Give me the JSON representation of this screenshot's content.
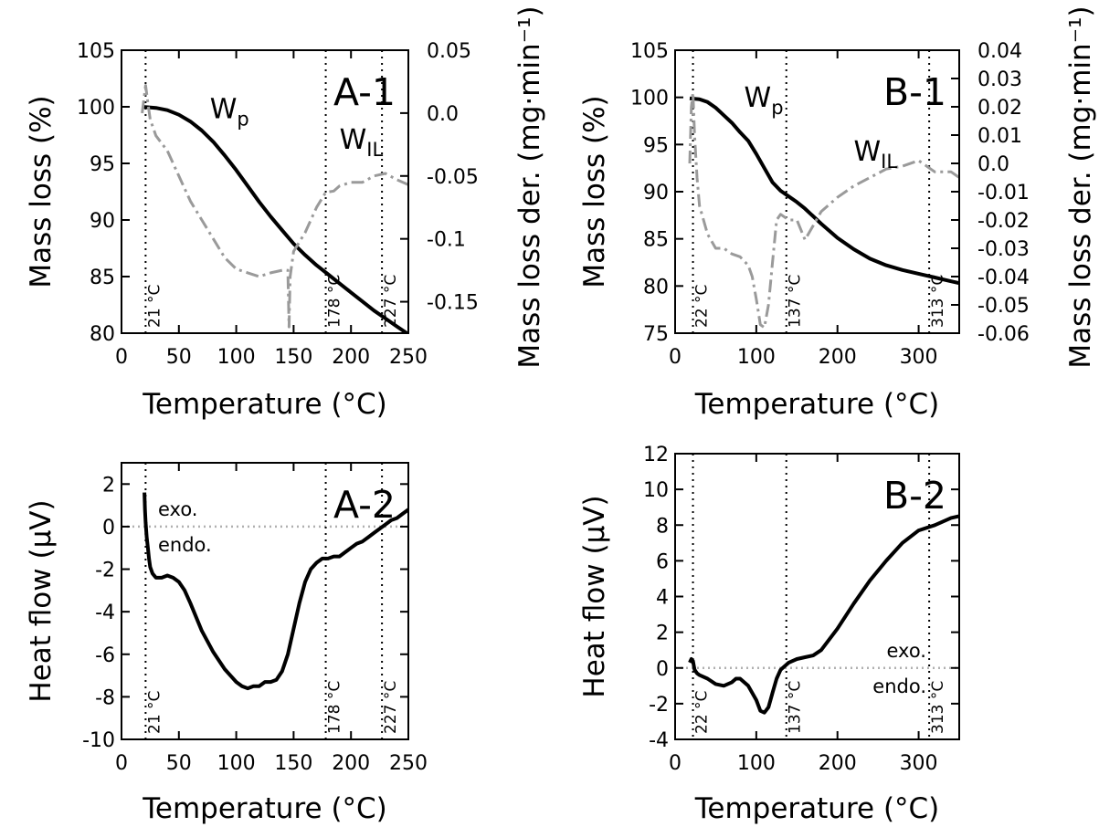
{
  "chart_data": [
    {
      "id": "A-1",
      "type": "line",
      "panel_label": "A-1",
      "xlabel": "Temperature (°C)",
      "ylabel": "Mass loss (%)",
      "y2label": "Mass loss der. (mg·min⁻¹)",
      "xlim": [
        0,
        250
      ],
      "ylim": [
        80,
        105
      ],
      "y2lim": [
        -0.175,
        0.05
      ],
      "xticks": [
        "0",
        "50",
        "100",
        "150",
        "200",
        "250"
      ],
      "yticks": [
        "80",
        "85",
        "90",
        "95",
        "100",
        "105"
      ],
      "y2ticks": [
        "-0.15",
        "-0.1",
        "-0.05",
        "0.0",
        "0.05"
      ],
      "vlines": [
        {
          "x": 21,
          "label": "21 °C"
        },
        {
          "x": 178,
          "label": "178 °C"
        },
        {
          "x": 227,
          "label": "227 °C"
        }
      ],
      "curve_labels": [
        {
          "text": "W",
          "sub": "p",
          "x": 77,
          "y": 99.0
        },
        {
          "text": "W",
          "sub": "IL",
          "x": 190,
          "y": 96.3
        }
      ],
      "series": [
        {
          "name": "mass loss",
          "axis": "y",
          "color": "#000000",
          "x": [
            18,
            30,
            40,
            50,
            60,
            70,
            80,
            90,
            100,
            110,
            120,
            130,
            140,
            150,
            160,
            170,
            180,
            190,
            200,
            210,
            220,
            230,
            240,
            250
          ],
          "y": [
            100.0,
            99.9,
            99.7,
            99.3,
            98.7,
            97.9,
            96.9,
            95.7,
            94.4,
            93.0,
            91.6,
            90.3,
            89.1,
            87.9,
            86.9,
            86.0,
            85.2,
            84.4,
            83.6,
            82.8,
            82.0,
            81.3,
            80.6,
            79.9
          ]
        },
        {
          "name": "derivative",
          "axis": "y2",
          "color": "#9a9a9a",
          "dash": "14 5 3 5",
          "x": [
            18,
            21,
            23,
            25,
            30,
            40,
            50,
            60,
            70,
            80,
            90,
            100,
            110,
            120,
            130,
            140,
            145,
            146,
            147,
            150,
            160,
            170,
            178,
            185,
            190,
            200,
            210,
            220,
            230,
            240,
            250
          ],
          "y": [
            0.0,
            0.022,
            0.008,
            -0.005,
            -0.018,
            -0.03,
            -0.05,
            -0.07,
            -0.085,
            -0.1,
            -0.115,
            -0.124,
            -0.127,
            -0.13,
            -0.127,
            -0.125,
            -0.125,
            -0.17,
            -0.13,
            -0.11,
            -0.095,
            -0.075,
            -0.063,
            -0.062,
            -0.058,
            -0.055,
            -0.055,
            -0.05,
            -0.048,
            -0.053,
            -0.057
          ]
        }
      ]
    },
    {
      "id": "B-1",
      "type": "line",
      "panel_label": "B-1",
      "xlabel": "Temperature (°C)",
      "ylabel": "Mass loss (%)",
      "y2label": "Mass loss der. (mg·min⁻¹)",
      "xlim": [
        0,
        350
      ],
      "ylim": [
        75,
        105
      ],
      "y2lim": [
        -0.06,
        0.04
      ],
      "xticks": [
        "0",
        "100",
        "200",
        "300"
      ],
      "yticks": [
        "75",
        "80",
        "85",
        "90",
        "95",
        "100",
        "105"
      ],
      "y2ticks": [
        "-0.06",
        "-0.05",
        "-0.04",
        "-0.03",
        "-0.02",
        "-0.01",
        "0.0",
        "0.01",
        "0.02",
        "0.03",
        "0.04"
      ],
      "vlines": [
        {
          "x": 22,
          "label": "22 °C"
        },
        {
          "x": 137,
          "label": "137 °C"
        },
        {
          "x": 313,
          "label": "313 °C"
        }
      ],
      "curve_labels": [
        {
          "text": "W",
          "sub": "p",
          "x": 85,
          "y": 99.0
        },
        {
          "text": "W",
          "sub": "IL",
          "x": 220,
          "y": 93.3
        }
      ],
      "series": [
        {
          "name": "mass loss",
          "axis": "y",
          "color": "#000000",
          "x": [
            18,
            30,
            40,
            50,
            60,
            70,
            80,
            90,
            100,
            110,
            120,
            130,
            140,
            150,
            160,
            170,
            180,
            200,
            220,
            240,
            260,
            280,
            300,
            320,
            340,
            350
          ],
          "y": [
            99.9,
            99.8,
            99.5,
            98.9,
            98.1,
            97.3,
            96.3,
            95.4,
            94.0,
            92.5,
            91.0,
            90.1,
            89.5,
            88.9,
            88.2,
            87.4,
            86.6,
            85.1,
            83.9,
            82.9,
            82.2,
            81.7,
            81.3,
            80.9,
            80.5,
            80.3
          ]
        },
        {
          "name": "derivative",
          "axis": "y2",
          "color": "#9a9a9a",
          "dash": "14 5 3 5",
          "x": [
            18,
            20,
            22,
            24,
            27,
            30,
            35,
            40,
            50,
            60,
            70,
            80,
            90,
            95,
            100,
            105,
            110,
            115,
            120,
            125,
            130,
            140,
            150,
            160,
            170,
            180,
            200,
            220,
            240,
            260,
            280,
            300,
            320,
            340,
            350
          ],
          "y": [
            0.0,
            0.02,
            0.025,
            0.01,
            -0.005,
            -0.015,
            -0.02,
            -0.025,
            -0.03,
            -0.03,
            -0.032,
            -0.033,
            -0.036,
            -0.04,
            -0.048,
            -0.057,
            -0.058,
            -0.05,
            -0.035,
            -0.02,
            -0.018,
            -0.02,
            -0.02,
            -0.027,
            -0.022,
            -0.017,
            -0.012,
            -0.008,
            -0.005,
            -0.002,
            -0.001,
            0.001,
            -0.003,
            -0.003,
            -0.005
          ]
        }
      ]
    },
    {
      "id": "A-2",
      "type": "line",
      "panel_label": "A-2",
      "xlabel": "Temperature (°C)",
      "ylabel": "Heat flow (μV)",
      "xlim": [
        0,
        250
      ],
      "ylim": [
        -10,
        3
      ],
      "xticks": [
        "0",
        "50",
        "100",
        "150",
        "200",
        "250"
      ],
      "yticks": [
        "-10",
        "-8",
        "-6",
        "-4",
        "-2",
        "0",
        "2"
      ],
      "zero_line": true,
      "annotations": {
        "exo": "exo.",
        "endo": "endo."
      },
      "vlines": [
        {
          "x": 21,
          "label": "21 °C"
        },
        {
          "x": 178,
          "label": "178 °C"
        },
        {
          "x": 227,
          "label": "227 °C"
        }
      ],
      "series": [
        {
          "name": "heat flow",
          "color": "#000000",
          "x": [
            20,
            20.5,
            21,
            22,
            23,
            24,
            25,
            27,
            30,
            35,
            40,
            45,
            50,
            55,
            60,
            70,
            80,
            90,
            100,
            105,
            110,
            115,
            120,
            125,
            130,
            135,
            140,
            145,
            150,
            155,
            160,
            165,
            170,
            175,
            180,
            185,
            190,
            195,
            200,
            205,
            210,
            215,
            220,
            225,
            230,
            235,
            240,
            245,
            250
          ],
          "y": [
            1.6,
            0.8,
            0.2,
            -0.5,
            -1.0,
            -1.5,
            -1.9,
            -2.2,
            -2.4,
            -2.4,
            -2.3,
            -2.4,
            -2.6,
            -3.0,
            -3.6,
            -4.9,
            -5.9,
            -6.7,
            -7.3,
            -7.5,
            -7.6,
            -7.5,
            -7.5,
            -7.3,
            -7.3,
            -7.2,
            -6.8,
            -6.0,
            -4.8,
            -3.6,
            -2.6,
            -2.0,
            -1.7,
            -1.5,
            -1.5,
            -1.4,
            -1.4,
            -1.2,
            -1.0,
            -0.8,
            -0.7,
            -0.5,
            -0.3,
            -0.1,
            0.1,
            0.3,
            0.4,
            0.6,
            0.8
          ]
        }
      ]
    },
    {
      "id": "B-2",
      "type": "line",
      "panel_label": "B-2",
      "xlabel": "Temperature (°C)",
      "ylabel": "Heat flow (μV)",
      "xlim": [
        0,
        350
      ],
      "ylim": [
        -4,
        12
      ],
      "xticks": [
        "0",
        "100",
        "200",
        "300"
      ],
      "yticks": [
        "-4",
        "-2",
        "0",
        "2",
        "4",
        "6",
        "8",
        "10",
        "12"
      ],
      "zero_line": true,
      "annotations": {
        "exo": "exo.",
        "endo": "endo."
      },
      "vlines": [
        {
          "x": 22,
          "label": "22 °C"
        },
        {
          "x": 137,
          "label": "137 °C"
        },
        {
          "x": 313,
          "label": "313 °C"
        }
      ],
      "series": [
        {
          "name": "heat flow",
          "color": "#000000",
          "x": [
            18,
            20,
            22,
            24,
            27,
            30,
            40,
            50,
            60,
            70,
            75,
            80,
            90,
            100,
            105,
            110,
            115,
            120,
            125,
            130,
            140,
            150,
            160,
            170,
            180,
            200,
            220,
            240,
            260,
            280,
            300,
            320,
            340,
            350
          ],
          "y": [
            0.3,
            0.5,
            0.4,
            -0.1,
            -0.3,
            -0.4,
            -0.6,
            -0.9,
            -1.0,
            -0.8,
            -0.6,
            -0.6,
            -1.0,
            -1.8,
            -2.4,
            -2.5,
            -2.2,
            -1.4,
            -0.6,
            -0.1,
            0.3,
            0.5,
            0.6,
            0.7,
            1.0,
            2.2,
            3.6,
            4.9,
            6.0,
            7.0,
            7.7,
            8.0,
            8.4,
            8.5
          ]
        }
      ]
    }
  ]
}
